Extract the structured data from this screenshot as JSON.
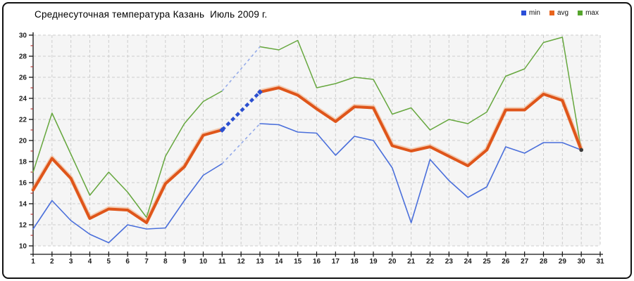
{
  "title": "Среднесуточная температура Казань  Июль 2009 г.",
  "legend": {
    "position": "top-right",
    "items": [
      {
        "label": "min",
        "color": "#2a4ed8"
      },
      {
        "label": "avg",
        "color": "#e8641e"
      },
      {
        "label": "max",
        "color": "#55a52c"
      }
    ]
  },
  "chart_data": {
    "type": "line",
    "title": "Среднесуточная температура Казань  Июль 2009 г.",
    "xlabel": "",
    "ylabel": "",
    "xlim": [
      1,
      31
    ],
    "ylim": [
      10,
      30
    ],
    "grid": true,
    "x": [
      1,
      2,
      3,
      4,
      5,
      6,
      7,
      8,
      9,
      10,
      11,
      12,
      13,
      14,
      15,
      16,
      17,
      18,
      19,
      20,
      21,
      22,
      23,
      24,
      25,
      26,
      27,
      28,
      29,
      30
    ],
    "x_axis_ticks": [
      1,
      2,
      3,
      4,
      5,
      6,
      7,
      8,
      9,
      10,
      11,
      12,
      13,
      14,
      15,
      16,
      17,
      18,
      19,
      20,
      21,
      22,
      23,
      24,
      25,
      26,
      27,
      28,
      29,
      30,
      31
    ],
    "y_axis_ticks": [
      10,
      12,
      14,
      16,
      18,
      20,
      22,
      24,
      26,
      28,
      30
    ],
    "series": [
      {
        "name": "min",
        "color": "#4a6fdb",
        "width": 1.6,
        "values": [
          11.6,
          14.3,
          12.4,
          11.1,
          10.3,
          12.0,
          11.6,
          11.7,
          14.3,
          16.7,
          17.8,
          19.7,
          21.6,
          21.5,
          20.8,
          20.7,
          18.6,
          20.4,
          20.0,
          17.4,
          12.2,
          18.2,
          16.2,
          14.6,
          15.6,
          19.4,
          18.8,
          19.8,
          19.8,
          19.1
        ]
      },
      {
        "name": "avg",
        "color": "#df551a",
        "width": 4,
        "values": [
          15.3,
          18.3,
          16.4,
          12.6,
          13.5,
          13.4,
          12.2,
          15.9,
          17.5,
          20.5,
          21.0,
          22.8,
          24.6,
          25.0,
          24.3,
          23.0,
          21.8,
          23.2,
          23.1,
          19.5,
          19.0,
          19.4,
          18.5,
          17.6,
          19.1,
          22.9,
          22.9,
          24.4,
          23.8,
          19.1
        ]
      },
      {
        "name": "max",
        "color": "#66a73e",
        "width": 1.5,
        "values": [
          17.0,
          22.6,
          18.7,
          14.8,
          17.0,
          15.1,
          12.7,
          18.5,
          21.6,
          23.7,
          24.7,
          26.8,
          28.9,
          28.6,
          29.5,
          25.0,
          25.4,
          26.0,
          25.8,
          22.5,
          23.1,
          21.0,
          22.0,
          21.6,
          22.7,
          26.1,
          26.8,
          29.3,
          29.8,
          19.1
        ]
      }
    ],
    "dashed_highlight": {
      "from_day": 11,
      "to_day": 13,
      "avg_dash_color": "#2b4fd0",
      "minmax_dash_color": "#95abe9",
      "note": "segment days 11-13 drawn dashed; avg segment highlighted thick blue"
    },
    "end_marker": {
      "day": 30,
      "value": 19.1,
      "color": "#3c3c3c"
    },
    "minor_y_tick_color": "#b23333",
    "plot_background": "#f5f5f5",
    "gridline_color": "#cdcdcd"
  }
}
